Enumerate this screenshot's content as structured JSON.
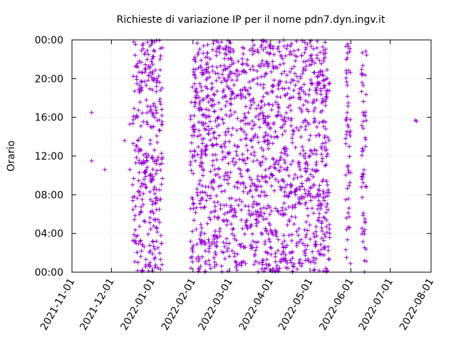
{
  "chart_data": {
    "type": "scatter",
    "title": "Richieste di variazione IP per il nome pdn7.dyn.ingv.it",
    "xlabel": "",
    "ylabel": "Orario",
    "x_range": [
      "2021-11-01",
      "2022-08-01"
    ],
    "y_range_hours": [
      0,
      24
    ],
    "x_ticks": [
      "2021-11-01",
      "2021-12-01",
      "2022-01-01",
      "2022-02-01",
      "2022-03-01",
      "2022-04-01",
      "2022-05-01",
      "2022-06-01",
      "2022-07-01",
      "2022-08-01"
    ],
    "y_ticks": [
      "00:00",
      "04:00",
      "08:00",
      "12:00",
      "16:00",
      "20:00",
      "00:00"
    ],
    "y_tick_values": [
      0,
      4,
      8,
      12,
      16,
      20,
      24
    ],
    "marker": "+",
    "color": "#9400d3",
    "grid": true,
    "isolated_points": [
      {
        "date": "2021-11-16",
        "hour": 16.5
      },
      {
        "date": "2021-11-16",
        "hour": 11.5
      },
      {
        "date": "2021-11-26",
        "hour": 10.6
      },
      {
        "date": "2021-12-11",
        "hour": 13.6
      },
      {
        "date": "2021-12-15",
        "hour": 15.3
      },
      {
        "date": "2021-12-15",
        "hour": 10.6
      },
      {
        "date": "2022-07-20",
        "hour": 15.7
      },
      {
        "date": "2022-07-21",
        "hour": 15.6
      }
    ],
    "dense_periods": [
      {
        "start": "2021-12-17",
        "end": "2022-01-09",
        "hour_min": 0,
        "hour_max": 24
      },
      {
        "start": "2022-01-30",
        "end": "2022-05-16",
        "hour_min": 0,
        "hour_max": 24
      },
      {
        "start": "2022-05-28",
        "end": "2022-06-01",
        "hour_min": 0,
        "hour_max": 24
      },
      {
        "start": "2022-06-09",
        "end": "2022-06-13",
        "hour_min": 0,
        "hour_max": 24
      }
    ]
  }
}
